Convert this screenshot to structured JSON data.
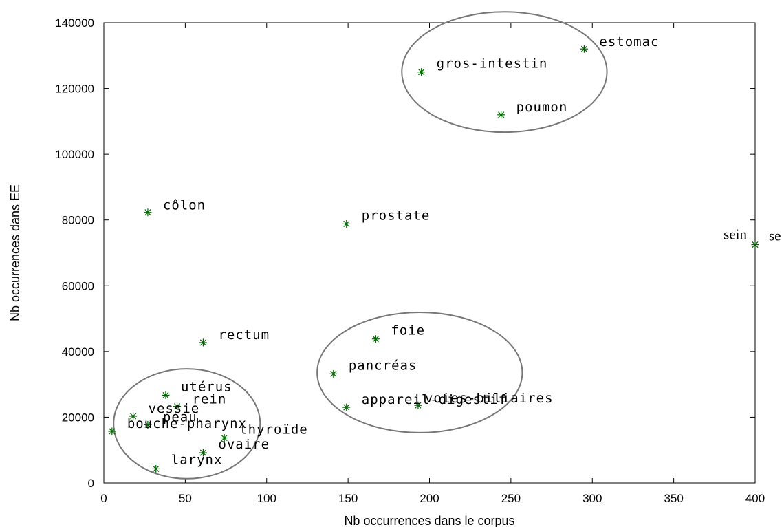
{
  "chart_data": {
    "type": "scatter",
    "title": "",
    "xlabel": "Nb occurrences dans le corpus",
    "ylabel": "Nb occurrences dans EE",
    "xlim": [
      0,
      400
    ],
    "ylim": [
      0,
      140000
    ],
    "x_ticks": [
      0,
      50,
      100,
      150,
      200,
      250,
      300,
      350,
      400
    ],
    "y_ticks": [
      0,
      20000,
      40000,
      60000,
      80000,
      100000,
      120000,
      140000
    ],
    "grid": false,
    "legend": "none",
    "marker_color": "#006400",
    "ellipse_color": "#777777",
    "points": [
      {
        "label": "estomac",
        "x": 295,
        "y": 132000
      },
      {
        "label": "gros-intestin",
        "x": 195,
        "y": 125000
      },
      {
        "label": "poumon",
        "x": 244,
        "y": 112000
      },
      {
        "label": "côlon",
        "x": 27,
        "y": 82300
      },
      {
        "label": "prostate",
        "x": 149,
        "y": 78800
      },
      {
        "label": "sein",
        "x": 400,
        "y": 72500
      },
      {
        "label": "rectum",
        "x": 61,
        "y": 42700
      },
      {
        "label": "foie",
        "x": 167,
        "y": 43800
      },
      {
        "label": "pancréas",
        "x": 141,
        "y": 33200
      },
      {
        "label": "voies-biliaires",
        "x": 193,
        "y": 23600
      },
      {
        "label": "appareil-digestif",
        "x": 149,
        "y": 23000
      },
      {
        "label": "utérus",
        "x": 38,
        "y": 26700
      },
      {
        "label": "rein",
        "x": 45,
        "y": 23300
      },
      {
        "label": "vessie",
        "x": 18,
        "y": 20300
      },
      {
        "label": "peau",
        "x": 27,
        "y": 17700
      },
      {
        "label": "bouche-pharynx",
        "x": 5,
        "y": 15700
      },
      {
        "label": "thyroïde",
        "x": 74,
        "y": 13700
      },
      {
        "label": "ovaire",
        "x": 61,
        "y": 9200
      },
      {
        "label": "larynx",
        "x": 32,
        "y": 4300
      }
    ],
    "ellipses": [
      {
        "cx": 246,
        "cy": 125000,
        "rx": 63,
        "ry": 18300
      },
      {
        "cx": 194,
        "cy": 33600,
        "rx": 63,
        "ry": 18300
      },
      {
        "cx": 51,
        "cy": 18000,
        "rx": 45,
        "ry": 16700
      }
    ],
    "extra_texts": [
      {
        "text": "sein",
        "x": 400,
        "y": 72500,
        "style": "serif-right"
      },
      {
        "text": "se",
        "x": 400,
        "y": 72500,
        "style": "serif-left-clipped"
      }
    ]
  }
}
